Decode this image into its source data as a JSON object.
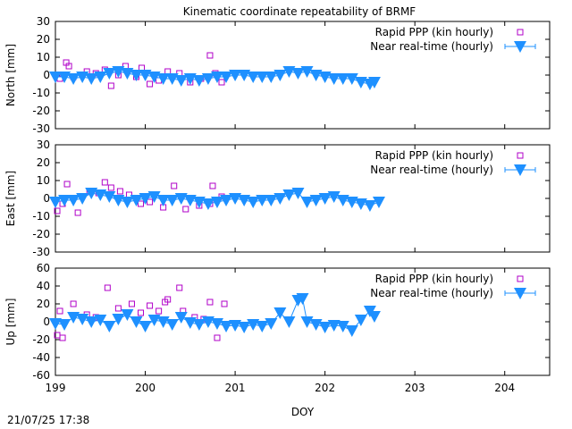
{
  "figure": {
    "title": "Kinematic coordinate repeatability of BRMF",
    "timestamp": "21/07/25 17:38"
  },
  "colors": {
    "rapid": "#b000c8",
    "nrt": "#1e90ff",
    "axis": "#000000"
  },
  "chart_data": [
    {
      "type": "scatter",
      "ylabel": "North [mm]",
      "xlim": [
        199,
        204.5
      ],
      "ylim": [
        -30,
        30
      ],
      "xticks": [
        199,
        200,
        201,
        202,
        203,
        204
      ],
      "yticks": [
        -30,
        -20,
        -10,
        0,
        10,
        20,
        30
      ],
      "xtick_labels_shown": false,
      "legend_position": "top-right",
      "series": [
        {
          "name": "Rapid PPP (kin hourly)",
          "marker": "square",
          "x": [
            199.05,
            199.12,
            199.15,
            199.2,
            199.35,
            199.45,
            199.55,
            199.62,
            199.7,
            199.78,
            199.9,
            199.96,
            200.05,
            200.15,
            200.25,
            200.38,
            200.5,
            200.62,
            200.72,
            200.78,
            200.85
          ],
          "y": [
            -2,
            7,
            5,
            -1,
            2,
            1,
            3,
            -6,
            0,
            5,
            -1,
            4,
            -5,
            -3,
            2,
            1,
            -4,
            -2,
            11,
            1,
            -4
          ]
        },
        {
          "name": "Near real-time (hourly)",
          "marker": "triangle-down",
          "x": [
            199.0,
            199.1,
            199.2,
            199.3,
            199.4,
            199.5,
            199.6,
            199.7,
            199.8,
            199.9,
            200.0,
            200.1,
            200.2,
            200.3,
            200.4,
            200.5,
            200.6,
            200.7,
            200.8,
            200.9,
            201.0,
            201.1,
            201.2,
            201.3,
            201.4,
            201.5,
            201.6,
            201.7,
            201.8,
            201.9,
            202.0,
            202.1,
            202.2,
            202.3,
            202.4,
            202.5,
            202.55
          ],
          "y": [
            -1,
            -1,
            -2,
            -1,
            -2,
            -1,
            1,
            2,
            1,
            0,
            0,
            -1,
            -2,
            -2,
            -3,
            -2,
            -3,
            -2,
            -1,
            -1,
            0,
            0,
            -1,
            -1,
            -1,
            0,
            2,
            1,
            2,
            0,
            -1,
            -2,
            -2,
            -2,
            -4,
            -5,
            -4
          ]
        }
      ]
    },
    {
      "type": "scatter",
      "ylabel": "East [mm]",
      "xlim": [
        199,
        204.5
      ],
      "ylim": [
        -30,
        30
      ],
      "xticks": [
        199,
        200,
        201,
        202,
        203,
        204
      ],
      "yticks": [
        -30,
        -20,
        -10,
        0,
        10,
        20,
        30
      ],
      "xtick_labels_shown": false,
      "legend_position": "top-right",
      "series": [
        {
          "name": "Rapid PPP (kin hourly)",
          "marker": "square",
          "x": [
            199.02,
            199.08,
            199.13,
            199.25,
            199.38,
            199.48,
            199.55,
            199.62,
            199.72,
            199.82,
            199.95,
            200.05,
            200.2,
            200.32,
            200.45,
            200.6,
            200.72,
            200.75,
            200.85
          ],
          "y": [
            -7,
            -3,
            8,
            -8,
            4,
            3,
            9,
            6,
            4,
            2,
            -3,
            -2,
            -5,
            7,
            -6,
            -4,
            -3,
            7,
            1
          ]
        },
        {
          "name": "Near real-time (hourly)",
          "marker": "triangle-down",
          "x": [
            199.0,
            199.1,
            199.2,
            199.3,
            199.4,
            199.5,
            199.6,
            199.7,
            199.8,
            199.9,
            200.0,
            200.1,
            200.2,
            200.3,
            200.4,
            200.5,
            200.6,
            200.7,
            200.8,
            200.9,
            201.0,
            201.1,
            201.2,
            201.3,
            201.4,
            201.5,
            201.6,
            201.7,
            201.8,
            201.9,
            202.0,
            202.1,
            202.2,
            202.3,
            202.4,
            202.5,
            202.6
          ],
          "y": [
            -2,
            -1,
            -1,
            0,
            3,
            2,
            1,
            -1,
            -2,
            -1,
            0,
            1,
            -1,
            -1,
            0,
            -1,
            -2,
            -3,
            -2,
            -1,
            0,
            -1,
            -2,
            -1,
            -1,
            0,
            2,
            3,
            -2,
            -1,
            0,
            1,
            -1,
            -2,
            -3,
            -4,
            -2
          ]
        }
      ]
    },
    {
      "type": "scatter",
      "ylabel": "Up [mm]",
      "xlabel": "DOY",
      "xlim": [
        199,
        204.5
      ],
      "ylim": [
        -60,
        60
      ],
      "xticks": [
        199,
        200,
        201,
        202,
        203,
        204
      ],
      "yticks": [
        -60,
        -40,
        -20,
        0,
        20,
        40,
        60
      ],
      "xtick_labels_shown": true,
      "legend_position": "top-right",
      "series": [
        {
          "name": "Rapid PPP (kin hourly)",
          "marker": "square",
          "x": [
            199.02,
            199.05,
            199.08,
            199.2,
            199.35,
            199.45,
            199.58,
            199.7,
            199.85,
            199.95,
            200.05,
            200.15,
            200.22,
            200.25,
            200.38,
            200.42,
            200.55,
            200.65,
            200.72,
            200.8,
            200.88
          ],
          "y": [
            -15,
            12,
            -18,
            20,
            8,
            5,
            38,
            15,
            20,
            10,
            18,
            12,
            22,
            25,
            38,
            12,
            5,
            3,
            22,
            -18,
            20
          ]
        },
        {
          "name": "Near real-time (hourly)",
          "marker": "triangle-down",
          "x": [
            199.0,
            199.1,
            199.2,
            199.3,
            199.4,
            199.5,
            199.6,
            199.7,
            199.8,
            199.9,
            200.0,
            200.1,
            200.2,
            200.3,
            200.4,
            200.5,
            200.6,
            200.7,
            200.8,
            200.9,
            201.0,
            201.1,
            201.2,
            201.3,
            201.4,
            201.5,
            201.6,
            201.7,
            201.75,
            201.8,
            201.9,
            202.0,
            202.1,
            202.2,
            202.3,
            202.4,
            202.5,
            202.55
          ],
          "y": [
            -2,
            -3,
            5,
            3,
            0,
            2,
            -5,
            3,
            8,
            0,
            -5,
            2,
            0,
            -3,
            5,
            -1,
            -3,
            0,
            -2,
            -5,
            -4,
            -6,
            -3,
            -5,
            -2,
            10,
            0,
            24,
            26,
            0,
            -3,
            -6,
            -4,
            -5,
            -10,
            2,
            12,
            6
          ]
        }
      ]
    }
  ]
}
